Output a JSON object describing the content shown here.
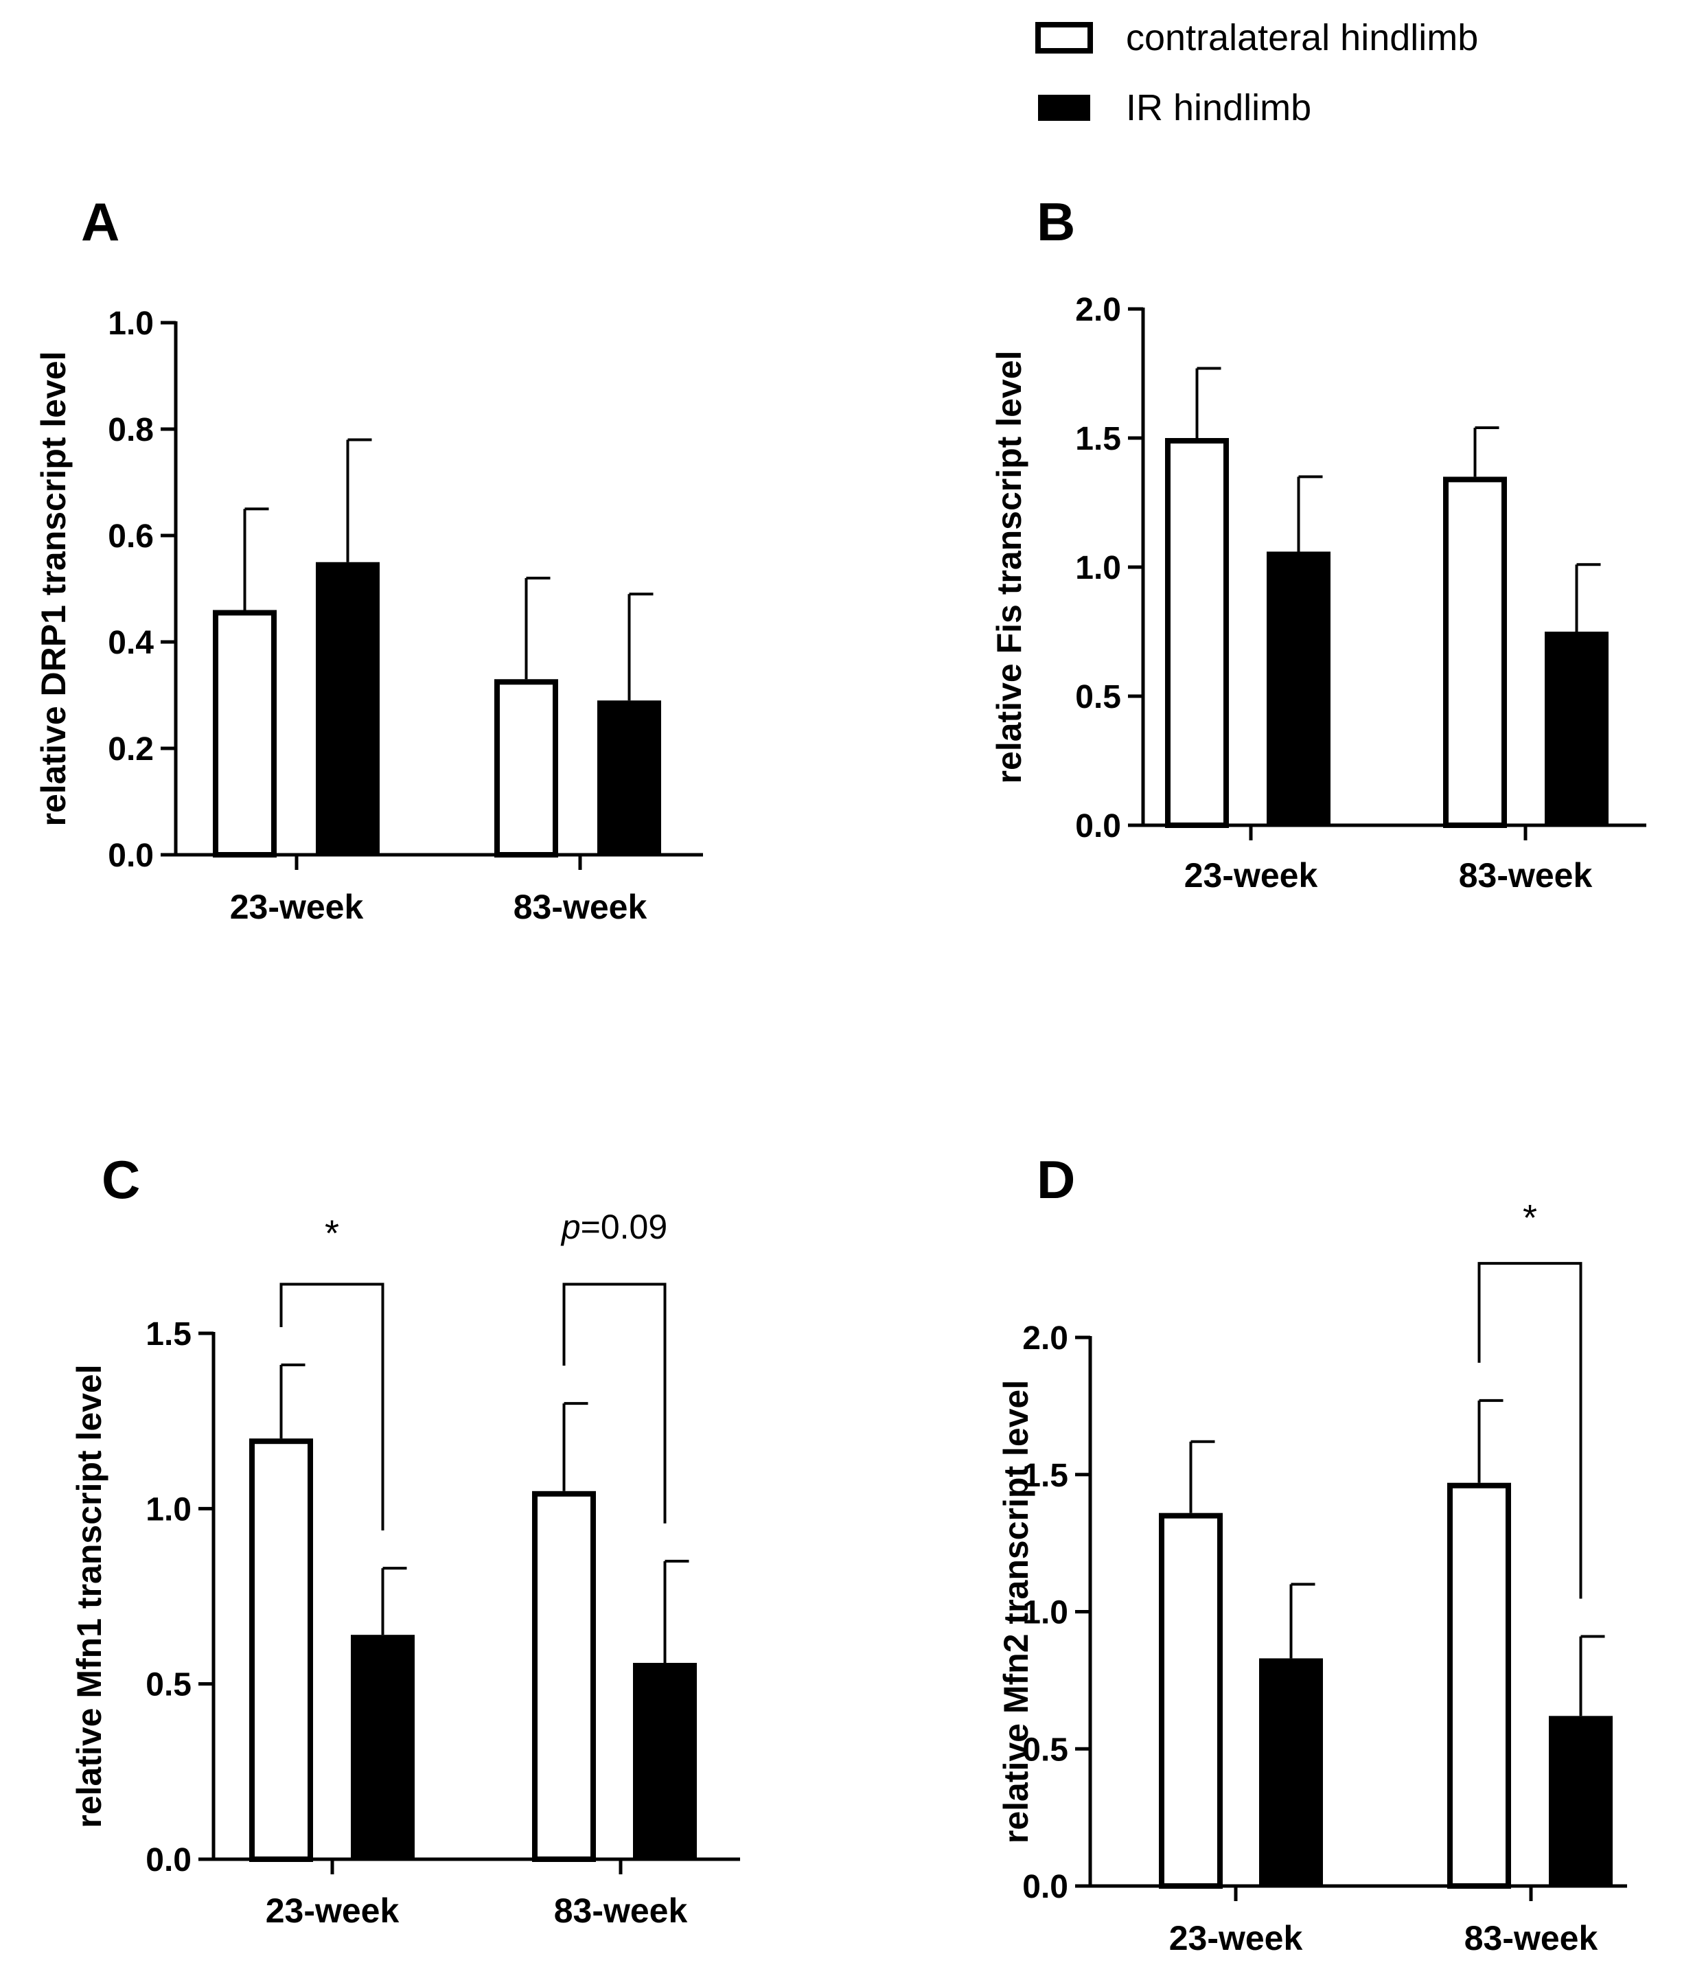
{
  "legend": {
    "position": "top-right",
    "items": [
      {
        "label": "contralateral hindlimb",
        "fill": "#ffffff"
      },
      {
        "label": "IR hindlimb",
        "fill": "#000000"
      }
    ]
  },
  "colors": {
    "axis": "#000000",
    "open_bar": "#ffffff",
    "filled_bar": "#000000"
  },
  "chart_data": [
    {
      "panel": "A",
      "type": "bar",
      "categories": [
        "23-week",
        "83-week"
      ],
      "ylabel": "relative DRP1 transcript level",
      "ylim": [
        0,
        1.0
      ],
      "yticks": [
        0.0,
        0.2,
        0.4,
        0.6,
        0.8,
        1.0
      ],
      "tick_labels": [
        "0.0",
        "0.2",
        "0.4",
        "0.6",
        "0.8",
        "1.0"
      ],
      "series": [
        {
          "name": "contralateral hindlimb",
          "values": [
            0.46,
            0.33
          ],
          "errors": [
            0.19,
            0.19
          ]
        },
        {
          "name": "IR hindlimb",
          "values": [
            0.55,
            0.29
          ],
          "errors": [
            0.23,
            0.2
          ]
        }
      ],
      "annotations": []
    },
    {
      "panel": "B",
      "type": "bar",
      "categories": [
        "23-week",
        "83-week"
      ],
      "ylabel": "relative Fis transcript level",
      "ylim": [
        0,
        2.0
      ],
      "yticks": [
        0.0,
        0.5,
        1.0,
        1.5,
        2.0
      ],
      "tick_labels": [
        "0.0",
        "0.5",
        "1.0",
        "1.5",
        "2.0"
      ],
      "series": [
        {
          "name": "contralateral hindlimb",
          "values": [
            1.5,
            1.35
          ],
          "errors": [
            0.27,
            0.19
          ]
        },
        {
          "name": "IR hindlimb",
          "values": [
            1.06,
            0.75
          ],
          "errors": [
            0.29,
            0.26
          ]
        }
      ],
      "annotations": []
    },
    {
      "panel": "C",
      "type": "bar",
      "categories": [
        "23-week",
        "83-week"
      ],
      "ylabel": "relative Mfn1 transcript level",
      "ylim": [
        0,
        1.5
      ],
      "yticks": [
        0.0,
        0.5,
        1.0,
        1.5
      ],
      "tick_labels": [
        "0.0",
        "0.5",
        "1.0",
        "1.5"
      ],
      "series": [
        {
          "name": "contralateral hindlimb",
          "values": [
            1.2,
            1.05
          ],
          "errors": [
            0.21,
            0.25
          ]
        },
        {
          "name": "IR hindlimb",
          "values": [
            0.64,
            0.56
          ],
          "errors": [
            0.19,
            0.29
          ]
        }
      ],
      "annotations": [
        {
          "category": 0,
          "prefix": "",
          "text": "*",
          "star": true,
          "bracket_top": 1.64,
          "label_y": 1.75
        },
        {
          "category": 1,
          "prefix": "p",
          "text": "=0.09",
          "star": false,
          "bracket_top": 1.64,
          "label_y": 1.77
        }
      ]
    },
    {
      "panel": "D",
      "type": "bar",
      "categories": [
        "23-week",
        "83-week"
      ],
      "ylabel": "relative Mfn2 transcript level",
      "ylim": [
        0,
        2.0
      ],
      "yticks": [
        0.0,
        0.5,
        1.0,
        1.5,
        2.0
      ],
      "tick_labels": [
        "0.0",
        "0.5",
        "1.0",
        "1.5",
        "2.0"
      ],
      "series": [
        {
          "name": "contralateral hindlimb",
          "values": [
            1.36,
            1.47
          ],
          "errors": [
            0.26,
            0.3
          ]
        },
        {
          "name": "IR hindlimb",
          "values": [
            0.83,
            0.62
          ],
          "errors": [
            0.27,
            0.29
          ]
        }
      ],
      "annotations": [
        {
          "category": 1,
          "prefix": "",
          "text": "*",
          "star": true,
          "bracket_top": 2.27,
          "label_y": 2.39
        }
      ]
    }
  ]
}
